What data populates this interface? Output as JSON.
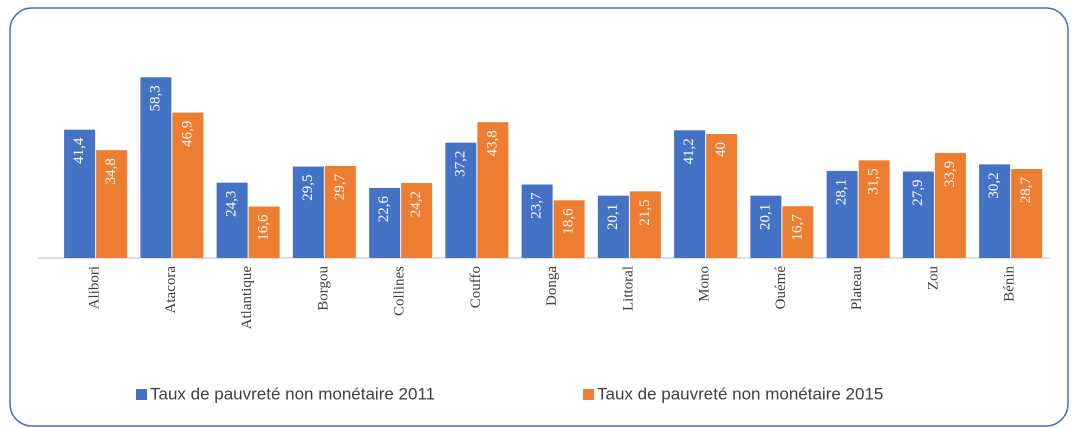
{
  "chart_data": {
    "type": "bar",
    "categories": [
      "Alibori",
      "Atacora",
      "Atlantique",
      "Borgou",
      "Collines",
      "Couffo",
      "Donga",
      "Littoral",
      "Mono",
      "Ouémé",
      "Plateau",
      "Zou",
      "Bénin"
    ],
    "series": [
      {
        "name": "Taux de pauvreté non monétaire 2011",
        "color": "#4472c4",
        "values": [
          41.4,
          58.3,
          24.3,
          29.5,
          22.6,
          37.2,
          23.7,
          20.1,
          41.2,
          20.1,
          28.1,
          27.9,
          30.2
        ],
        "value_labels": [
          "41,4",
          "58,3",
          "24,3",
          "29,5",
          "22,6",
          "37,2",
          "23,7",
          "20,1",
          "41,2",
          "20,1",
          "28,1",
          "27,9",
          "30,2"
        ]
      },
      {
        "name": "Taux de pauvreté non monétaire 2015",
        "color": "#ed7d31",
        "values": [
          34.8,
          46.9,
          16.6,
          29.7,
          24.2,
          43.8,
          18.6,
          21.5,
          40,
          16.7,
          31.5,
          33.9,
          28.7
        ],
        "value_labels": [
          "34,8",
          "46,9",
          "16,6",
          "29,7",
          "24,2",
          "43,8",
          "18,6",
          "21,5",
          "40",
          "16,7",
          "31,5",
          "33,9",
          "28,7"
        ]
      }
    ],
    "legend": "bottom"
  }
}
